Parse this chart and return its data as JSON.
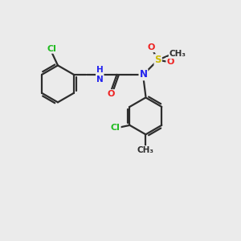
{
  "background_color": "#ebebeb",
  "bond_color": "#2d2d2d",
  "atom_colors": {
    "Cl": "#22bb22",
    "N": "#2222ee",
    "O": "#ee2222",
    "S": "#ccbb00",
    "C": "#2d2d2d",
    "H": "#555555"
  },
  "figsize": [
    3.0,
    3.0
  ],
  "dpi": 100,
  "xlim": [
    0,
    10
  ],
  "ylim": [
    0,
    10
  ]
}
